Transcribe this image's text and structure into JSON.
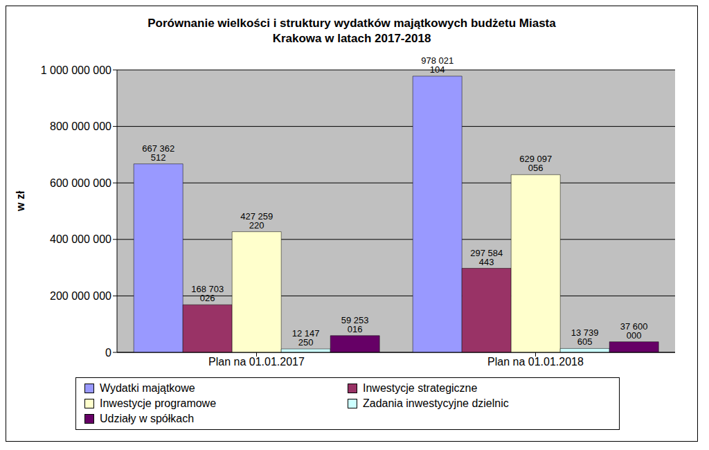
{
  "chart_data": {
    "type": "bar",
    "title": "Porównanie wielkości i struktury wydatków majątkowych budżetu Miasta Krakowa w latach 2017-2018",
    "y_label": "w zł",
    "categories": [
      "Plan na 01.01.2017",
      "Plan na 01.01.2018"
    ],
    "series": [
      {
        "name": "Wydatki majątkowe",
        "color": "#9999ff",
        "values": [
          667362512,
          978021104
        ],
        "value_labels": [
          "667 362 512",
          "978 021 104"
        ]
      },
      {
        "name": "Inwestycje strategiczne",
        "color": "#993366",
        "values": [
          168703026,
          297584443
        ],
        "value_labels": [
          "168 703 026",
          "297 584 443"
        ]
      },
      {
        "name": "Inwestycje programowe",
        "color": "#ffffcc",
        "values": [
          427259220,
          629097056
        ],
        "value_labels": [
          "427 259 220",
          "629 097 056"
        ]
      },
      {
        "name": "Zadania inwestycyjne dzielnic",
        "color": "#ccffff",
        "values": [
          12147250,
          13739605
        ],
        "value_labels": [
          "12 147 250",
          "13 739 605"
        ]
      },
      {
        "name": "Udziały w spółkach",
        "color": "#660066",
        "values": [
          59253016,
          37600000
        ],
        "value_labels": [
          "59 253 016",
          "37 600 000"
        ]
      }
    ],
    "ylim": [
      0,
      1000000000
    ],
    "yticks": [
      0,
      {
        "value": 200000000,
        "label": "200 000 000"
      },
      {
        "value": 400000000,
        "label": "400 000 000"
      },
      {
        "value": 600000000,
        "label": "600 000 000"
      },
      {
        "value": 800000000,
        "label": "800 000 000"
      },
      {
        "value": 1000000000,
        "label": "1 000 000 000"
      }
    ],
    "grid": true,
    "data_labels": true,
    "legend": "bottom"
  }
}
